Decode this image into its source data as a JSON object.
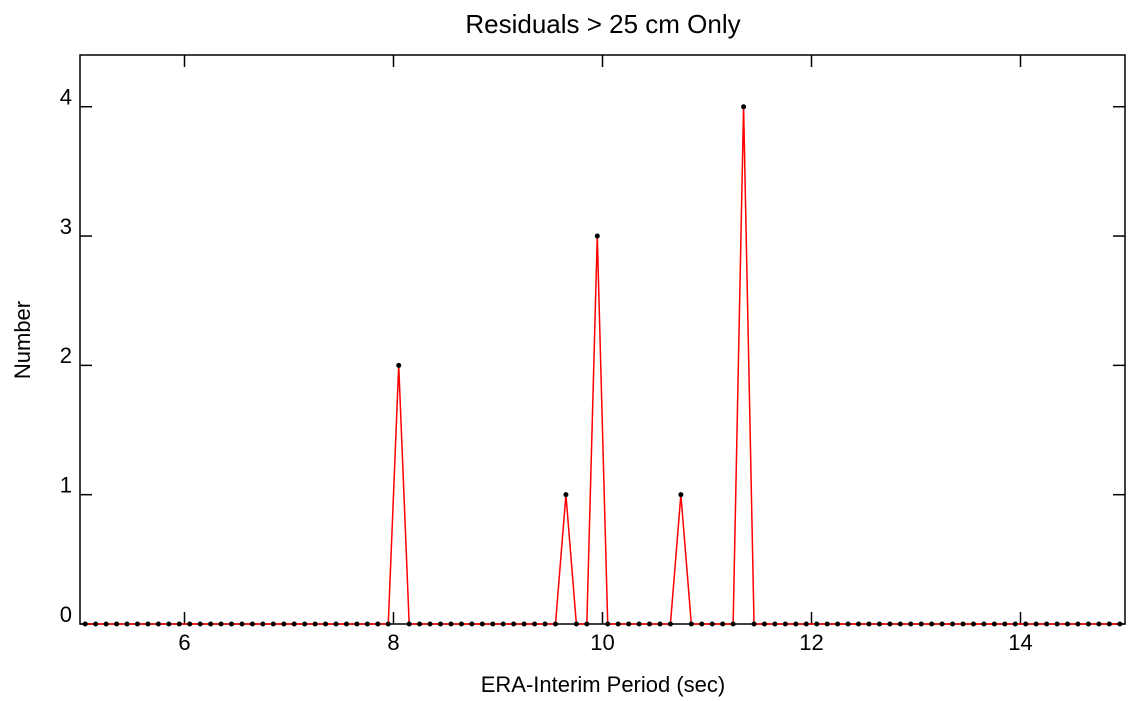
{
  "chart_data": {
    "type": "line",
    "title": "Residuals > 25 cm Only",
    "x_label": "ERA-Interim Period (sec)",
    "y_label": "Number",
    "x": [
      5.05,
      5.15,
      5.25,
      5.35,
      5.45,
      5.55,
      5.65,
      5.75,
      5.85,
      5.95,
      6.05,
      6.15,
      6.25,
      6.35,
      6.45,
      6.55,
      6.65,
      6.75,
      6.85,
      6.95,
      7.05,
      7.15,
      7.25,
      7.35,
      7.45,
      7.55,
      7.65,
      7.75,
      7.85,
      7.95,
      8.05,
      8.15,
      8.25,
      8.35,
      8.45,
      8.55,
      8.65,
      8.75,
      8.85,
      8.95,
      9.05,
      9.15,
      9.25,
      9.35,
      9.45,
      9.55,
      9.65,
      9.75,
      9.85,
      9.95,
      10.05,
      10.15,
      10.25,
      10.35,
      10.45,
      10.55,
      10.65,
      10.75,
      10.85,
      10.95,
      11.05,
      11.15,
      11.25,
      11.35,
      11.45,
      11.55,
      11.65,
      11.75,
      11.85,
      11.95,
      12.05,
      12.15,
      12.25,
      12.35,
      12.45,
      12.55,
      12.65,
      12.75,
      12.85,
      12.95,
      13.05,
      13.15,
      13.25,
      13.35,
      13.45,
      13.55,
      13.65,
      13.75,
      13.85,
      13.95,
      14.05,
      14.15,
      14.25,
      14.35,
      14.45,
      14.55,
      14.65,
      14.75,
      14.85,
      14.95
    ],
    "series": [
      {
        "color": "#ff0000",
        "marker_color": "#000000",
        "values": [
          0,
          0,
          0,
          0,
          0,
          0,
          0,
          0,
          0,
          0,
          0,
          0,
          0,
          0,
          0,
          0,
          0,
          0,
          0,
          0,
          0,
          0,
          0,
          0,
          0,
          0,
          0,
          0,
          0,
          0,
          2,
          0,
          0,
          0,
          0,
          0,
          0,
          0,
          0,
          0,
          0,
          0,
          0,
          0,
          0,
          0,
          1,
          0,
          0,
          3,
          0,
          0,
          0,
          0,
          0,
          0,
          0,
          1,
          0,
          0,
          0,
          0,
          0,
          4,
          0,
          0,
          0,
          0,
          0,
          0,
          0,
          0,
          0,
          0,
          0,
          0,
          0,
          0,
          0,
          0,
          0,
          0,
          0,
          0,
          0,
          0,
          0,
          0,
          0,
          0,
          0,
          0,
          0,
          0,
          0,
          0,
          0,
          0,
          0,
          0
        ]
      }
    ],
    "xlim": [
      5,
      15
    ],
    "ylim": [
      0,
      4.4
    ],
    "xticks": [
      6,
      8,
      10,
      12,
      14
    ],
    "yticks": [
      0,
      1,
      2,
      3,
      4
    ],
    "grid": false
  }
}
